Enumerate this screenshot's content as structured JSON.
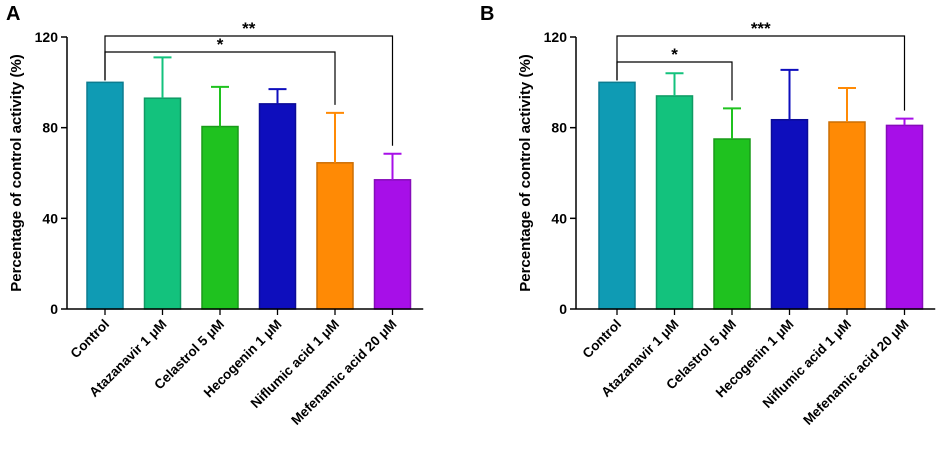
{
  "chart_data": [
    {
      "panel": "A",
      "type": "bar",
      "ylabel": "Percentage of control activity (%)",
      "ylim": [
        0,
        120
      ],
      "yticks": [
        0,
        40,
        80,
        120
      ],
      "categories": [
        "Control",
        "Atazanavir 1 μM",
        "Celastrol 5 μM",
        "Hecogenin 1 μM",
        "Niflumic acid 1 μM",
        "Mefenamic acid 20 μM"
      ],
      "values": [
        100,
        93,
        80.5,
        90.5,
        64.5,
        57
      ],
      "errors": [
        0,
        18,
        17.5,
        6.5,
        22,
        11.5
      ],
      "colors": [
        "#0f9bb4",
        "#13c27d",
        "#1fc21f",
        "#0e0ebd",
        "#ff8a05",
        "#a70fe8"
      ],
      "significance": [
        {
          "from": 0,
          "to": 5,
          "label": "**"
        },
        {
          "from": 0,
          "to": 4,
          "label": "*"
        }
      ]
    },
    {
      "panel": "B",
      "type": "bar",
      "ylabel": "Percentage of control activity (%)",
      "ylim": [
        0,
        120
      ],
      "yticks": [
        0,
        40,
        80,
        120
      ],
      "categories": [
        "Control",
        "Atazanavir 1 μM",
        "Celastrol 5 μM",
        "Hecogenin 1 μM",
        "Niflumic acid 1 μM",
        "Mefenamic acid 20 μM"
      ],
      "values": [
        100,
        94,
        75,
        83.5,
        82.5,
        81
      ],
      "errors": [
        0,
        10,
        13.5,
        22,
        15,
        3
      ],
      "colors": [
        "#0f9bb4",
        "#13c27d",
        "#1fc21f",
        "#0e0ebd",
        "#ff8a05",
        "#a70fe8"
      ],
      "significance": [
        {
          "from": 0,
          "to": 5,
          "label": "***"
        },
        {
          "from": 0,
          "to": 2,
          "label": "*"
        }
      ]
    }
  ]
}
